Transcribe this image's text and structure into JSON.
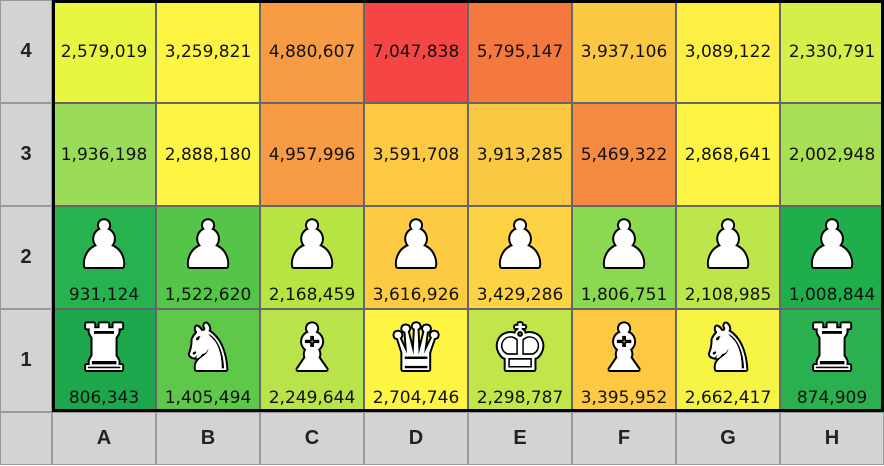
{
  "chart_data": {
    "type": "heatmap",
    "columns": [
      "A",
      "B",
      "C",
      "D",
      "E",
      "F",
      "G",
      "H"
    ],
    "rows": [
      "4",
      "3",
      "2",
      "1"
    ],
    "values": [
      [
        "2,579,019",
        "3,259,821",
        "4,880,607",
        "7,047,838",
        "5,795,147",
        "3,937,106",
        "3,089,122",
        "2,330,791"
      ],
      [
        "1,936,198",
        "2,888,180",
        "4,957,996",
        "3,591,708",
        "3,913,285",
        "5,469,322",
        "2,868,641",
        "2,002,948"
      ],
      [
        "931,124",
        "1,522,620",
        "2,168,459",
        "3,616,926",
        "3,429,286",
        "1,806,751",
        "2,108,985",
        "1,008,844"
      ],
      [
        "806,343",
        "1,405,494",
        "2,249,644",
        "2,704,746",
        "2,298,787",
        "3,395,952",
        "2,662,417",
        "874,909"
      ]
    ],
    "pieces": [
      null,
      null,
      [
        "pawn-icon",
        "pawn-icon",
        "pawn-icon",
        "pawn-icon",
        "pawn-icon",
        "pawn-icon",
        "pawn-icon",
        "pawn-icon"
      ],
      [
        "rook-icon",
        "knight-icon",
        "bishop-icon",
        "queen-icon",
        "king-icon",
        "bishop-icon",
        "knight-icon",
        "rook-icon"
      ]
    ],
    "cell_colors": [
      [
        "#e8f541",
        "#fdf444",
        "#f79b45",
        "#f54545",
        "#f5793f",
        "#fbc843",
        "#fdef44",
        "#d5ef49"
      ],
      [
        "#9bdb5a",
        "#fdf444",
        "#f79b45",
        "#fdc943",
        "#fbc843",
        "#f58a42",
        "#fdf444",
        "#a9df55"
      ],
      [
        "#27b14f",
        "#55c549",
        "#b6e443",
        "#fdcb43",
        "#fdd344",
        "#8ad950",
        "#bde64a",
        "#1fae4b"
      ],
      [
        "#1ea64c",
        "#5fc84a",
        "#b8e34a",
        "#fdf444",
        "#c2e64a",
        "#fdc943",
        "#f5f344",
        "#2bb04f"
      ]
    ],
    "grid": true,
    "legend": "none"
  }
}
